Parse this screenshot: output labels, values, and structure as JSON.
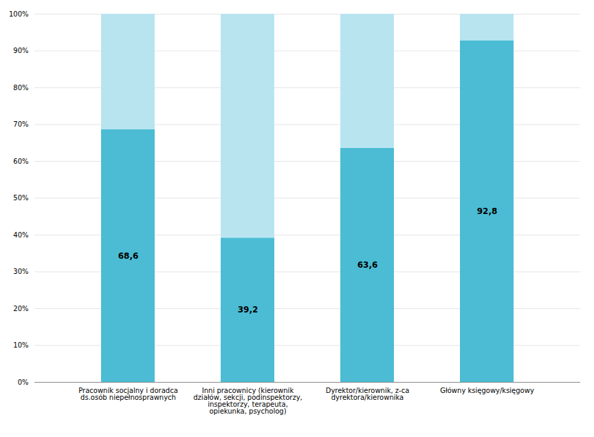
{
  "chart_data": {
    "type": "bar",
    "stacked": true,
    "categories": [
      "Pracownik socjalny i doradca\nds.osób niepełnosprawnych",
      "Inni pracownicy (kierownik\ndziałów, sekcji, podinspektorzy,\ninspektorzy, terapeuta,\nopiekunka, psycholog)",
      "Dyrektor/kierownik, z-ca\ndyrektora/kierownika",
      "Główny księgowy/księgowy"
    ],
    "series": [
      {
        "color": "#4bbcd4",
        "values": [
          68.6,
          39.2,
          63.6,
          92.8
        ],
        "data_labels": true,
        "value_labels": [
          "68,6",
          "39,2",
          "63,6",
          "92,8"
        ]
      },
      {
        "color": "#b8e4f0",
        "values": [
          31.4,
          60.8,
          36.4,
          7.2
        ]
      }
    ],
    "ylim": [
      0,
      100
    ],
    "yticks": [
      {
        "value": 0,
        "label": "0%"
      },
      {
        "value": 10,
        "label": "10%"
      },
      {
        "value": 20,
        "label": "20%"
      },
      {
        "value": 30,
        "label": "30%"
      },
      {
        "value": 40,
        "label": "40%"
      },
      {
        "value": 50,
        "label": "50%"
      },
      {
        "value": 60,
        "label": "60%"
      },
      {
        "value": 70,
        "label": "70%"
      },
      {
        "value": 80,
        "label": "80%"
      },
      {
        "value": 90,
        "label": "90%"
      },
      {
        "value": 100,
        "label": "100%"
      }
    ],
    "grid": true
  }
}
